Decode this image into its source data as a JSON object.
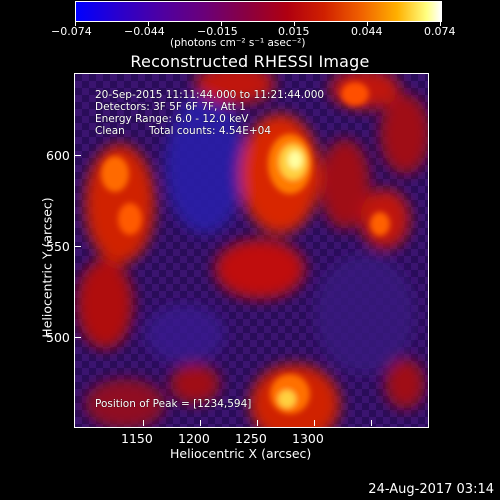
{
  "colorbar": {
    "tick_labels": [
      "−0.074",
      "−0.044",
      "−0.015",
      "0.015",
      "0.044",
      "0.074"
    ],
    "units": "(photons cm⁻² s⁻¹ asec⁻²)",
    "colors": [
      "#0000ff",
      "#5000a0",
      "#8a0040",
      "#d02000",
      "#ffb000",
      "#ffffff"
    ]
  },
  "title": "Reconstructed RHESSI Image",
  "info": {
    "line1": "20-Sep-2015 11:11:44.000 to 11:21:44.000",
    "line2": "Detectors: 3F 5F 6F 7F, Att 1",
    "line3": "Energy Range: 6.0 - 12.0 keV",
    "line4_a": "Clean",
    "line4_b": "Total counts: 4.54E+04",
    "peak": "Position of Peak = [1234,594]"
  },
  "x_axis": {
    "label": "Heliocentric X (arcsec)",
    "ticks": [
      "1150",
      "1200",
      "1250",
      "1300"
    ]
  },
  "y_axis": {
    "label": "Heliocentric Y (arcsec)",
    "ticks": [
      "600",
      "550",
      "500"
    ]
  },
  "timestamp": "24-Aug-2017 03:14"
}
